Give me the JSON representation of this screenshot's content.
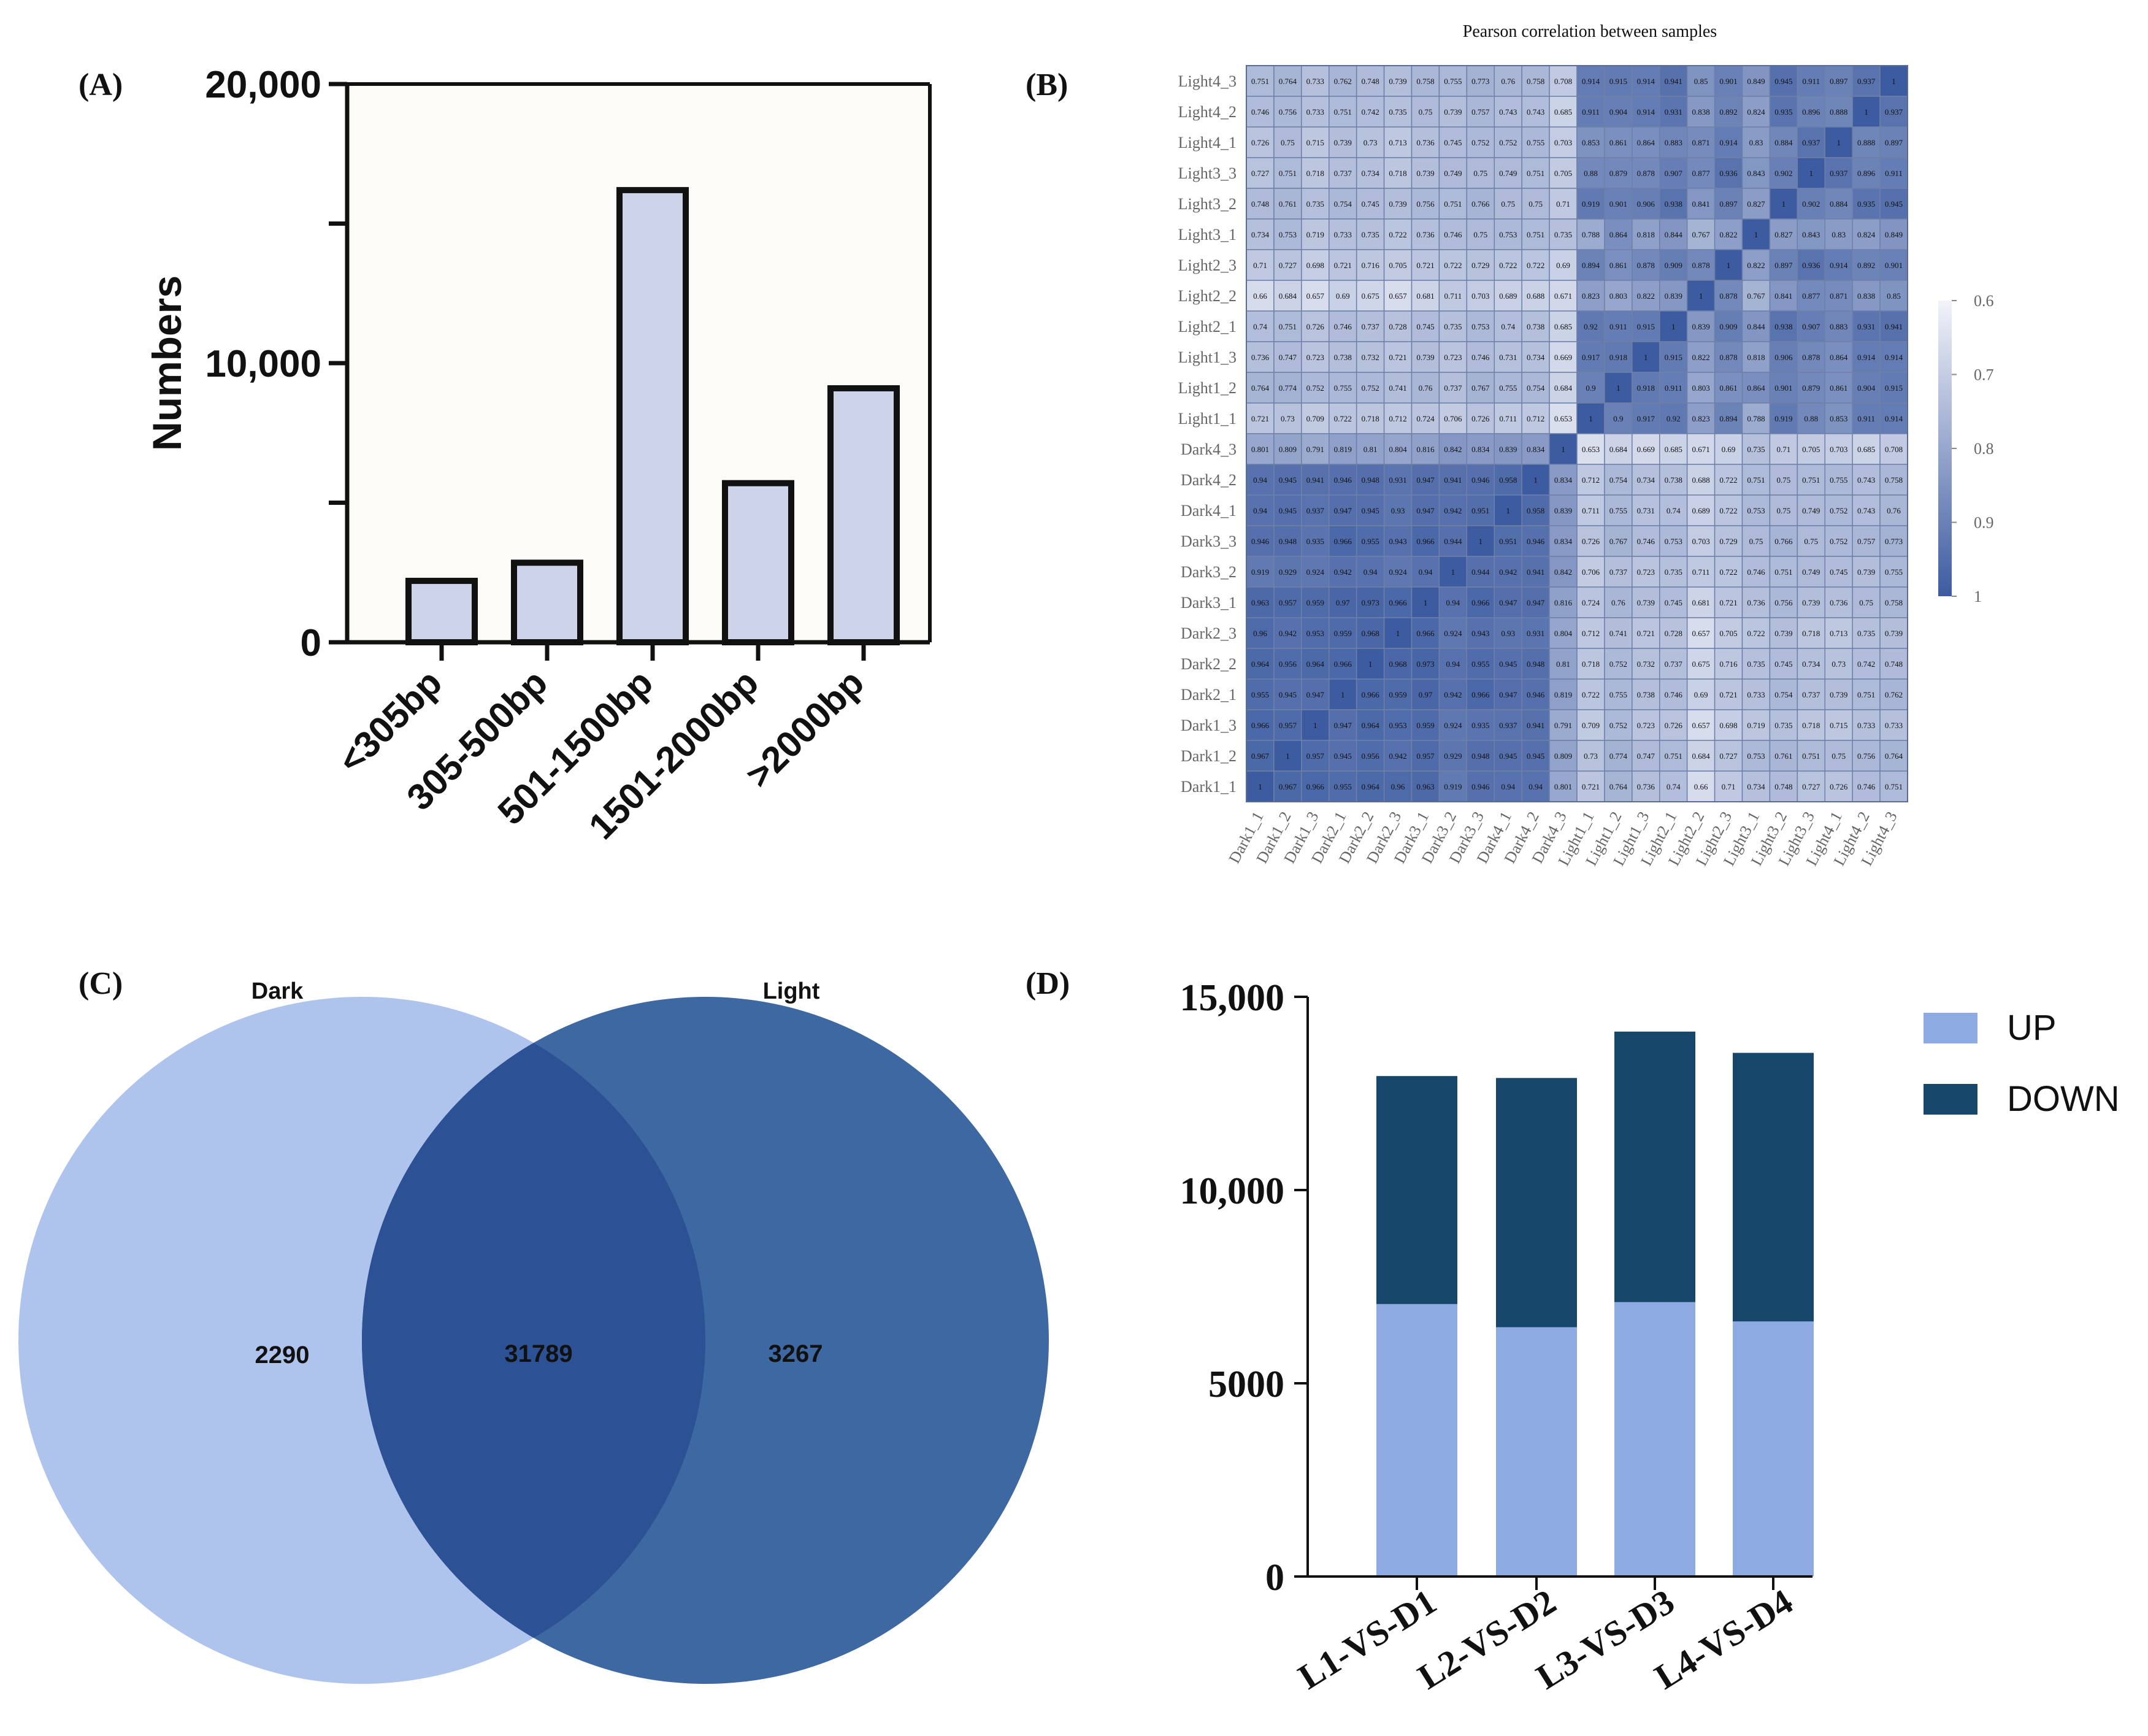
{
  "panels": {
    "A": "(A)",
    "B": "(B)",
    "C": "(C)",
    "D": "(D)"
  },
  "colors": {
    "bar_fill_a": "#cdd4ea",
    "bar_stroke_a": "#111111",
    "heat_high": "#3c5ba0",
    "heat_low": "#f2f3fa",
    "venn_dark": "#aec4ec",
    "venn_light": "#3e68a2",
    "venn_overlap": "#2c5295",
    "up": "#8eaae3",
    "down": "#17466b"
  },
  "chart_data": [
    {
      "id": "A",
      "type": "bar",
      "title": "",
      "xlabel": "",
      "ylabel": "Numbers",
      "categories": [
        "<305bp",
        "305-500bp",
        "501-1500bp",
        "1501-2000bp",
        ">2000bp"
      ],
      "values": [
        2200,
        2850,
        16200,
        5700,
        9100
      ],
      "ylim": [
        0,
        20000
      ],
      "yticks": [
        0,
        10000,
        20000
      ],
      "ytick_labels": [
        "0",
        "10,000",
        "20,000"
      ],
      "minor_yticks": [
        5000,
        15000
      ],
      "grid": false
    },
    {
      "id": "B",
      "type": "heatmap",
      "title": "Pearson correlation between samples",
      "samples": [
        "Dark1_1",
        "Dark1_2",
        "Dark1_3",
        "Dark2_1",
        "Dark2_2",
        "Dark2_3",
        "Dark3_1",
        "Dark3_2",
        "Dark3_3",
        "Dark4_1",
        "Dark4_2",
        "Dark4_3",
        "Light1_1",
        "Light1_2",
        "Light1_3",
        "Light2_1",
        "Light2_2",
        "Light2_3",
        "Light3_1",
        "Light3_2",
        "Light3_3",
        "Light4_1",
        "Light4_2",
        "Light4_3"
      ],
      "matrix": [
        [
          1,
          0.967,
          0.966,
          0.955,
          0.964,
          0.96,
          0.963,
          0.919,
          0.946,
          0.94,
          0.94,
          0.801,
          0.721,
          0.764,
          0.736,
          0.74,
          0.66,
          0.71,
          0.734,
          0.748,
          0.727,
          0.726,
          0.746,
          0.751
        ],
        [
          0.967,
          1,
          0.957,
          0.945,
          0.956,
          0.942,
          0.957,
          0.929,
          0.948,
          0.945,
          0.945,
          0.809,
          0.73,
          0.774,
          0.747,
          0.751,
          0.684,
          0.727,
          0.753,
          0.761,
          0.751,
          0.75,
          0.756,
          0.764
        ],
        [
          0.966,
          0.957,
          1,
          0.947,
          0.964,
          0.953,
          0.959,
          0.924,
          0.935,
          0.937,
          0.941,
          0.791,
          0.709,
          0.752,
          0.723,
          0.726,
          0.657,
          0.698,
          0.719,
          0.735,
          0.718,
          0.715,
          0.733,
          0.733
        ],
        [
          0.955,
          0.945,
          0.947,
          1,
          0.966,
          0.959,
          0.97,
          0.942,
          0.966,
          0.947,
          0.946,
          0.819,
          0.722,
          0.755,
          0.738,
          0.746,
          0.69,
          0.721,
          0.733,
          0.754,
          0.737,
          0.739,
          0.751,
          0.762
        ],
        [
          0.964,
          0.956,
          0.964,
          0.966,
          1,
          0.968,
          0.973,
          0.94,
          0.955,
          0.945,
          0.948,
          0.81,
          0.718,
          0.752,
          0.732,
          0.737,
          0.675,
          0.716,
          0.735,
          0.745,
          0.734,
          0.73,
          0.742,
          0.748
        ],
        [
          0.96,
          0.942,
          0.953,
          0.959,
          0.968,
          1,
          0.966,
          0.924,
          0.943,
          0.93,
          0.931,
          0.804,
          0.712,
          0.741,
          0.721,
          0.728,
          0.657,
          0.705,
          0.722,
          0.739,
          0.718,
          0.713,
          0.735,
          0.739
        ],
        [
          0.963,
          0.957,
          0.959,
          0.97,
          0.973,
          0.966,
          1,
          0.94,
          0.966,
          0.947,
          0.947,
          0.816,
          0.724,
          0.76,
          0.739,
          0.745,
          0.681,
          0.721,
          0.736,
          0.756,
          0.739,
          0.736,
          0.75,
          0.758
        ],
        [
          0.919,
          0.929,
          0.924,
          0.942,
          0.94,
          0.924,
          0.94,
          1,
          0.944,
          0.942,
          0.941,
          0.842,
          0.706,
          0.737,
          0.723,
          0.735,
          0.711,
          0.722,
          0.746,
          0.751,
          0.749,
          0.745,
          0.739,
          0.755
        ],
        [
          0.946,
          0.948,
          0.935,
          0.966,
          0.955,
          0.943,
          0.966,
          0.944,
          1,
          0.951,
          0.946,
          0.834,
          0.726,
          0.767,
          0.746,
          0.753,
          0.703,
          0.729,
          0.75,
          0.766,
          0.75,
          0.752,
          0.757,
          0.773
        ],
        [
          0.94,
          0.945,
          0.937,
          0.947,
          0.945,
          0.93,
          0.947,
          0.942,
          0.951,
          1,
          0.958,
          0.839,
          0.711,
          0.755,
          0.731,
          0.74,
          0.689,
          0.722,
          0.753,
          0.75,
          0.749,
          0.752,
          0.743,
          0.76
        ],
        [
          0.94,
          0.945,
          0.941,
          0.946,
          0.948,
          0.931,
          0.947,
          0.941,
          0.946,
          0.958,
          1,
          0.834,
          0.712,
          0.754,
          0.734,
          0.738,
          0.688,
          0.722,
          0.751,
          0.75,
          0.751,
          0.755,
          0.743,
          0.758
        ],
        [
          0.801,
          0.809,
          0.791,
          0.819,
          0.81,
          0.804,
          0.816,
          0.842,
          0.834,
          0.839,
          0.834,
          1,
          0.653,
          0.684,
          0.669,
          0.685,
          0.671,
          0.69,
          0.735,
          0.71,
          0.705,
          0.703,
          0.685,
          0.708
        ],
        [
          0.721,
          0.73,
          0.709,
          0.722,
          0.718,
          0.712,
          0.724,
          0.706,
          0.726,
          0.711,
          0.712,
          0.653,
          1,
          0.9,
          0.917,
          0.92,
          0.823,
          0.894,
          0.788,
          0.919,
          0.88,
          0.853,
          0.911,
          0.914
        ],
        [
          0.764,
          0.774,
          0.752,
          0.755,
          0.752,
          0.741,
          0.76,
          0.737,
          0.767,
          0.755,
          0.754,
          0.684,
          0.9,
          1,
          0.918,
          0.911,
          0.803,
          0.861,
          0.864,
          0.901,
          0.879,
          0.861,
          0.904,
          0.915
        ],
        [
          0.736,
          0.747,
          0.723,
          0.738,
          0.732,
          0.721,
          0.739,
          0.723,
          0.746,
          0.731,
          0.734,
          0.669,
          0.917,
          0.918,
          1,
          0.915,
          0.822,
          0.878,
          0.818,
          0.906,
          0.878,
          0.864,
          0.914,
          0.914
        ],
        [
          0.74,
          0.751,
          0.726,
          0.746,
          0.737,
          0.728,
          0.745,
          0.735,
          0.753,
          0.74,
          0.738,
          0.685,
          0.92,
          0.911,
          0.915,
          1,
          0.839,
          0.909,
          0.844,
          0.938,
          0.907,
          0.883,
          0.931,
          0.941
        ],
        [
          0.66,
          0.684,
          0.657,
          0.69,
          0.675,
          0.657,
          0.681,
          0.711,
          0.703,
          0.689,
          0.688,
          0.671,
          0.823,
          0.803,
          0.822,
          0.839,
          1,
          0.878,
          0.767,
          0.841,
          0.877,
          0.871,
          0.838,
          0.85
        ],
        [
          0.71,
          0.727,
          0.698,
          0.721,
          0.716,
          0.705,
          0.721,
          0.722,
          0.729,
          0.722,
          0.722,
          0.69,
          0.894,
          0.861,
          0.878,
          0.909,
          0.878,
          1,
          0.822,
          0.897,
          0.936,
          0.914,
          0.892,
          0.901
        ],
        [
          0.734,
          0.753,
          0.719,
          0.733,
          0.735,
          0.722,
          0.736,
          0.746,
          0.75,
          0.753,
          0.751,
          0.735,
          0.788,
          0.864,
          0.818,
          0.844,
          0.767,
          0.822,
          1,
          0.827,
          0.843,
          0.83,
          0.824,
          0.849
        ],
        [
          0.748,
          0.761,
          0.735,
          0.754,
          0.745,
          0.739,
          0.756,
          0.751,
          0.766,
          0.75,
          0.75,
          0.71,
          0.919,
          0.901,
          0.906,
          0.938,
          0.841,
          0.897,
          0.827,
          1,
          0.902,
          0.884,
          0.935,
          0.945
        ],
        [
          0.727,
          0.751,
          0.718,
          0.737,
          0.734,
          0.718,
          0.739,
          0.749,
          0.75,
          0.749,
          0.751,
          0.705,
          0.88,
          0.879,
          0.878,
          0.907,
          0.877,
          0.936,
          0.843,
          0.902,
          1,
          0.937,
          0.896,
          0.911
        ],
        [
          0.726,
          0.75,
          0.715,
          0.739,
          0.73,
          0.713,
          0.736,
          0.745,
          0.752,
          0.752,
          0.755,
          0.703,
          0.853,
          0.861,
          0.864,
          0.883,
          0.871,
          0.914,
          0.83,
          0.884,
          0.937,
          1,
          0.888,
          0.897
        ],
        [
          0.746,
          0.756,
          0.733,
          0.751,
          0.742,
          0.735,
          0.75,
          0.739,
          0.757,
          0.743,
          0.743,
          0.685,
          0.911,
          0.904,
          0.914,
          0.931,
          0.838,
          0.892,
          0.824,
          0.935,
          0.896,
          0.888,
          1,
          0.937
        ],
        [
          0.751,
          0.764,
          0.733,
          0.762,
          0.748,
          0.739,
          0.758,
          0.755,
          0.773,
          0.76,
          0.758,
          0.708,
          0.914,
          0.915,
          0.914,
          0.941,
          0.85,
          0.901,
          0.849,
          0.945,
          0.911,
          0.897,
          0.937,
          1
        ]
      ],
      "colorbar": {
        "range": [
          0.6,
          1
        ],
        "ticks": [
          0.6,
          0.7,
          0.8,
          0.9,
          1
        ],
        "tick_labels": [
          "0.6",
          "0.7",
          "0.8",
          "0.9",
          "1"
        ]
      }
    },
    {
      "id": "C",
      "type": "venn",
      "sets": [
        {
          "name": "Dark",
          "only": "2290"
        },
        {
          "name": "Light",
          "only": "3267"
        }
      ],
      "intersection": "31789"
    },
    {
      "id": "D",
      "type": "bar",
      "stacked": true,
      "title": "",
      "categories": [
        "L1-VS-D1",
        "L2-VS-D2",
        "L3-VS-D3",
        "L4-VS-D4"
      ],
      "series": [
        {
          "name": "UP",
          "values": [
            7050,
            6450,
            7100,
            6600
          ]
        },
        {
          "name": "DOWN",
          "values": [
            5900,
            6450,
            7000,
            6950
          ]
        }
      ],
      "ylim": [
        0,
        15000
      ],
      "yticks": [
        0,
        5000,
        10000,
        15000
      ],
      "ytick_labels": [
        "0",
        "5000",
        "10,000",
        "15,000"
      ],
      "legend": "top-right",
      "grid": false
    }
  ]
}
